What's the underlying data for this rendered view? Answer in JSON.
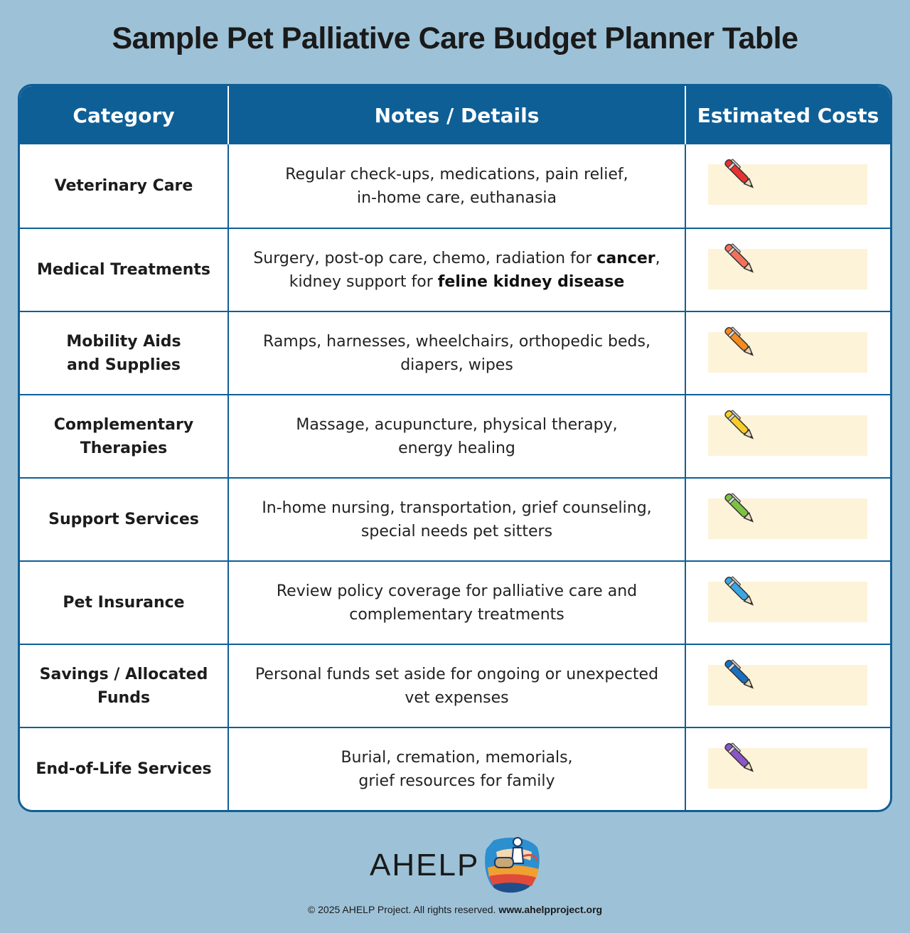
{
  "title": "Sample Pet Palliative Care Budget Planner Table",
  "table": {
    "headers": [
      "Category",
      "Notes / Details",
      "Estimated Costs"
    ],
    "rows": [
      {
        "category": "Veterinary Care",
        "notes": [
          "Regular check-ups, medications, pain relief,",
          "in-home care, euthanasia"
        ],
        "pen_color": "#e8322f"
      },
      {
        "category": "Medical Treatments",
        "notes_pre": "Surgery, post-op care, chemo, radiation for ",
        "notes_bold1": "cancer",
        "notes_mid": ",",
        "notes_pre2": "kidney support for ",
        "notes_bold2": "feline kidney disease",
        "pen_color": "#f2705c"
      },
      {
        "category": "Mobility Aids and Supplies",
        "category_lines": [
          "Mobility Aids",
          "and Supplies"
        ],
        "notes": [
          "Ramps, harnesses, wheelchairs, orthopedic beds,",
          "diapers, wipes"
        ],
        "pen_color": "#f58a1f"
      },
      {
        "category": "Complementary Therapies",
        "category_lines": [
          "Complementary",
          "Therapies"
        ],
        "notes": [
          "Massage, acupuncture, physical therapy,",
          "energy healing"
        ],
        "pen_color": "#f7cd2a"
      },
      {
        "category": "Support Services",
        "notes": [
          "In-home nursing, transportation, grief counseling,",
          "special needs pet sitters"
        ],
        "pen_color": "#7dc242"
      },
      {
        "category": "Pet Insurance",
        "notes": [
          "Review policy coverage for palliative care and",
          "complementary treatments"
        ],
        "pen_color": "#3aa7e3"
      },
      {
        "category": "Savings / Allocated Funds",
        "category_lines": [
          "Savings / Allocated",
          "Funds"
        ],
        "notes": [
          "Personal funds set aside for ongoing or unexpected",
          "vet expenses"
        ],
        "pen_color": "#1a6fbf"
      },
      {
        "category": "End-of-Life Services",
        "notes": [
          "Burial, cremation, memorials,",
          "grief resources for family"
        ],
        "pen_color": "#8a56c8"
      }
    ]
  },
  "footer": {
    "logo_text": "AHELP",
    "copyright": "© 2025 AHELP Project. All rights reserved. ",
    "url": "www.ahelpproject.org"
  },
  "colors": {
    "header_bg": "#0f5f97",
    "page_bg": "#9dc2d8",
    "cost_box": "#fdf3d9"
  }
}
